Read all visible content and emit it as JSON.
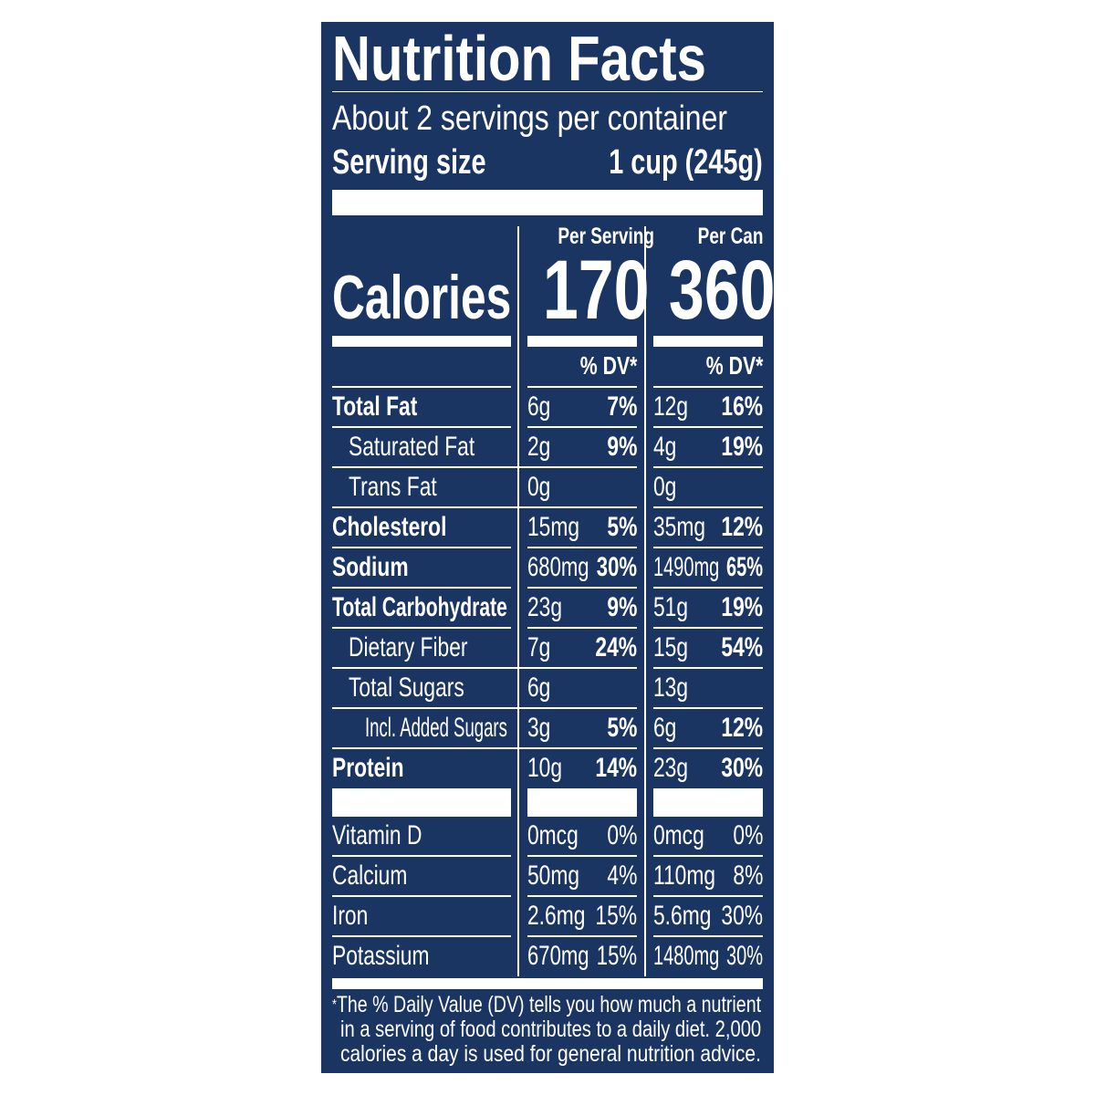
{
  "label": {
    "title": "Nutrition Facts",
    "servings_per_container": "About 2 servings per container",
    "serving_size_label": "Serving size",
    "serving_size_value": "1 cup (245g)",
    "calories_label": "Calories",
    "columns": [
      {
        "header": "Per Serving",
        "calories": "170",
        "dv_header": "% DV*"
      },
      {
        "header": "Per Can",
        "calories": "360",
        "dv_header": "% DV*"
      }
    ],
    "nutrients": [
      {
        "name": "Total Fat",
        "bold": true,
        "indent": 0,
        "serving": {
          "amount": "6g",
          "dv": "7%"
        },
        "can": {
          "amount": "12g",
          "dv": "16%"
        }
      },
      {
        "name": "Saturated Fat",
        "bold": false,
        "indent": 1,
        "serving": {
          "amount": "2g",
          "dv": "9%"
        },
        "can": {
          "amount": "4g",
          "dv": "19%"
        }
      },
      {
        "name": "Trans Fat",
        "bold": false,
        "indent": 1,
        "serving": {
          "amount": "0g",
          "dv": ""
        },
        "can": {
          "amount": "0g",
          "dv": ""
        }
      },
      {
        "name": "Cholesterol",
        "bold": true,
        "indent": 0,
        "serving": {
          "amount": "15mg",
          "dv": "5%"
        },
        "can": {
          "amount": "35mg",
          "dv": "12%"
        }
      },
      {
        "name": "Sodium",
        "bold": true,
        "indent": 0,
        "serving": {
          "amount": "680mg",
          "dv": "30%"
        },
        "can": {
          "amount": "1490mg",
          "dv": "65%"
        }
      },
      {
        "name": "Total Carbohydrate",
        "bold": true,
        "indent": 0,
        "serving": {
          "amount": "23g",
          "dv": "9%"
        },
        "can": {
          "amount": "51g",
          "dv": "19%"
        }
      },
      {
        "name": "Dietary Fiber",
        "bold": false,
        "indent": 1,
        "serving": {
          "amount": "7g",
          "dv": "24%"
        },
        "can": {
          "amount": "15g",
          "dv": "54%"
        }
      },
      {
        "name": "Total Sugars",
        "bold": false,
        "indent": 1,
        "serving": {
          "amount": "6g",
          "dv": ""
        },
        "can": {
          "amount": "13g",
          "dv": ""
        }
      },
      {
        "name": "Incl. Added Sugars",
        "bold": false,
        "indent": 2,
        "serving": {
          "amount": "3g",
          "dv": "5%"
        },
        "can": {
          "amount": "6g",
          "dv": "12%"
        }
      },
      {
        "name": "Protein",
        "bold": true,
        "indent": 0,
        "serving": {
          "amount": "10g",
          "dv": "14%"
        },
        "can": {
          "amount": "23g",
          "dv": "30%"
        }
      }
    ],
    "vitamins": [
      {
        "name": "Vitamin D",
        "serving": {
          "amount": "0mcg",
          "dv": "0%"
        },
        "can": {
          "amount": "0mcg",
          "dv": "0%"
        }
      },
      {
        "name": "Calcium",
        "serving": {
          "amount": "50mg",
          "dv": "4%"
        },
        "can": {
          "amount": "110mg",
          "dv": "8%"
        }
      },
      {
        "name": "Iron",
        "serving": {
          "amount": "2.6mg",
          "dv": "15%"
        },
        "can": {
          "amount": "5.6mg",
          "dv": "30%"
        }
      },
      {
        "name": "Potassium",
        "serving": {
          "amount": "670mg",
          "dv": "15%"
        },
        "can": {
          "amount": "1480mg",
          "dv": "30%"
        }
      }
    ],
    "footnote_asterisk": "*",
    "footnote": [
      "The % Daily Value (DV) tells you how much a nutrient",
      "in a serving of food contributes to a daily diet. 2,000",
      "calories a day is used for general nutrition advice."
    ]
  },
  "colors": {
    "background": "#1b3563",
    "text": "#ffffff"
  }
}
